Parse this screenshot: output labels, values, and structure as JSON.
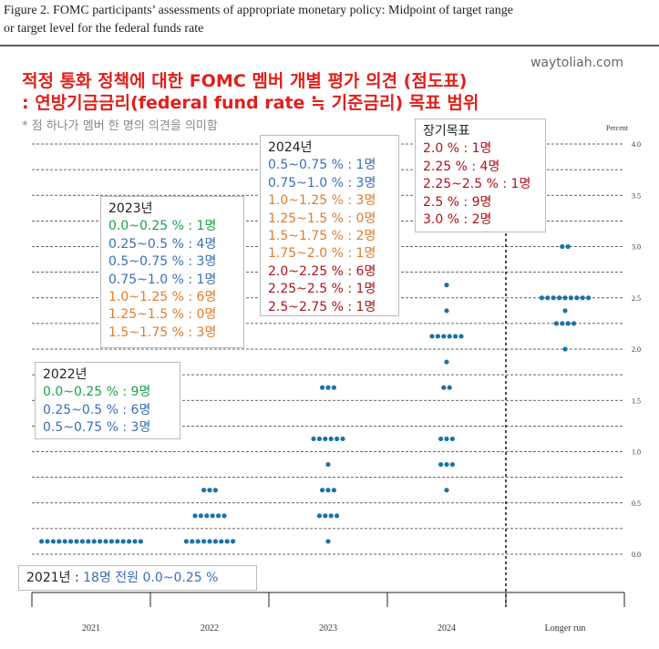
{
  "chart_data": {
    "type": "dotplot",
    "caption": [
      "Figure 2.  FOMC participants’ assessments of appropriate monetary policy:  Midpoint of target range",
      "or target level for the federal funds rate"
    ],
    "y_axis_label": "Percent",
    "categories": [
      "2021",
      "2022",
      "2023",
      "2024",
      "Longer run"
    ],
    "dots": [
      [
        {
          "y": 0.125,
          "n": 18
        }
      ],
      [
        {
          "y": 0.125,
          "n": 9
        },
        {
          "y": 0.375,
          "n": 6
        },
        {
          "y": 0.625,
          "n": 3
        }
      ],
      [
        {
          "y": 0.125,
          "n": 1
        },
        {
          "y": 0.375,
          "n": 4
        },
        {
          "y": 0.625,
          "n": 3
        },
        {
          "y": 0.875,
          "n": 1
        },
        {
          "y": 1.125,
          "n": 6
        },
        {
          "y": 1.625,
          "n": 3
        }
      ],
      [
        {
          "y": 0.625,
          "n": 1
        },
        {
          "y": 0.875,
          "n": 3
        },
        {
          "y": 1.125,
          "n": 3
        },
        {
          "y": 1.625,
          "n": 2
        },
        {
          "y": 1.875,
          "n": 1
        },
        {
          "y": 2.125,
          "n": 6
        },
        {
          "y": 2.375,
          "n": 1
        },
        {
          "y": 2.625,
          "n": 1
        }
      ],
      [
        {
          "y": 2.0,
          "n": 1
        },
        {
          "y": 2.25,
          "n": 4
        },
        {
          "y": 2.375,
          "n": 1
        },
        {
          "y": 2.5,
          "n": 9
        },
        {
          "y": 3.0,
          "n": 2
        }
      ]
    ],
    "color": "#1a73a8",
    "ylim": [
      0,
      4
    ],
    "yticks": [
      {
        "value": 0,
        "label": "0.0"
      },
      0.5,
      {
        "value": 1,
        "label": "1.0"
      },
      1.5,
      {
        "value": 2,
        "label": "2.0"
      },
      2.5,
      {
        "value": 3,
        "label": "3.0"
      },
      3.5,
      {
        "value": 4,
        "label": "4.0"
      }
    ],
    "yticks_minor": [
      0.25,
      0.75,
      1.25,
      1.75,
      2.25,
      2.75,
      3.25,
      3.75
    ],
    "grid": true,
    "annotations": {
      "title": [
        "적정 통화 정책에 대한 FOMC 멤버 개별 평가 의견 (점도표)",
        ": 연방기금금리(federal fund rate ≒ 기준금리) 목표 범위"
      ],
      "note": "* 점 하나가 멤버 한 명의 의견을 의미함",
      "watermark": "waytoliah.com",
      "boxes": [
        {
          "title": "2024년",
          "lines": [
            {
              "text": "0.5~0.75 % : 1명",
              "color": "#3a6fb8"
            },
            {
              "text": "0.75~1.0 % : 3명",
              "color": "#3a6fb8"
            },
            {
              "text": "1.0~1.25 % : 3명",
              "color": "#e07c2a"
            },
            {
              "text": "1.25~1.5 % : 0명",
              "color": "#e07c2a"
            },
            {
              "text": "1.5~1.75 % : 2명",
              "color": "#e07c2a"
            },
            {
              "text": "1.75~2.0 % : 1명",
              "color": "#e07c2a"
            },
            {
              "text": "2.0~2.25 % : 6명",
              "color": "#b0121b"
            },
            {
              "text": "2.25~2.5 % : 1명",
              "color": "#b0121b"
            },
            {
              "text": "2.5~2.75 % : 1명",
              "color": "#b0121b"
            }
          ]
        },
        {
          "title": "2023년",
          "lines": [
            {
              "text": "0.0~0.25 % : 1명",
              "color": "#1aa34a"
            },
            {
              "text": "0.25~0.5 % : 4명",
              "color": "#3a6fb8"
            },
            {
              "text": "0.5~0.75 % : 3명",
              "color": "#3a6fb8"
            },
            {
              "text": "0.75~1.0 % : 1명",
              "color": "#3a6fb8"
            },
            {
              "text": "1.0~1.25 % : 6명",
              "color": "#e07c2a"
            },
            {
              "text": "1.25~1.5 % : 0명",
              "color": "#e07c2a"
            },
            {
              "text": "1.5~1.75 % : 3명",
              "color": "#e07c2a"
            }
          ]
        },
        {
          "title": "장기목표",
          "lines": [
            {
              "text": "2.0 % : 1명",
              "color": "#b0121b"
            },
            {
              "text": "2.25 % : 4명",
              "color": "#b0121b"
            },
            {
              "text": "2.25~2.5 % : 1명",
              "color": "#b0121b"
            },
            {
              "text": "2.5 % : 9명",
              "color": "#b0121b"
            },
            {
              "text": "3.0 % : 2명",
              "color": "#b0121b"
            }
          ]
        },
        {
          "title": "2022년",
          "lines": [
            {
              "text": "0.0~0.25 % : 9명",
              "color": "#1aa34a"
            },
            {
              "text": "0.25~0.5 % : 6명",
              "color": "#3a6fb8"
            },
            {
              "text": "0.5~0.75 % : 3명",
              "color": "#3a6fb8"
            }
          ]
        },
        {
          "title": "2021년 :",
          "lines": [
            {
              "text": "18명 전원 0.0~0.25 %",
              "color": "#3a6fb8"
            }
          ]
        }
      ]
    }
  }
}
